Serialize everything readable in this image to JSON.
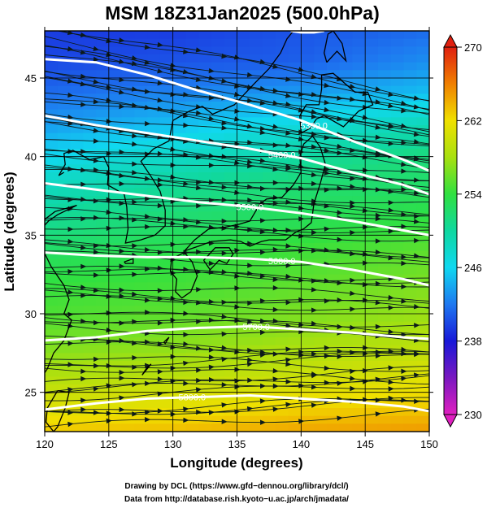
{
  "chart_data": {
    "type": "heatmap",
    "title": "MSM 18Z31Jan2025 (500.0hPa)",
    "xlabel": "Longitude (degrees)",
    "ylabel": "Latitude  (degrees)",
    "xlim": [
      120,
      150
    ],
    "ylim": [
      22.5,
      48
    ],
    "x_ticks": [
      120,
      125,
      130,
      135,
      140,
      145,
      150
    ],
    "y_ticks": [
      25,
      30,
      35,
      40,
      45
    ],
    "x_tick_labels": [
      "120",
      "125",
      "130",
      "135",
      "140",
      "145",
      "150"
    ],
    "y_tick_labels": [
      "25",
      "30",
      "35",
      "40",
      "45"
    ],
    "grid": true,
    "colorbar": {
      "min": 230,
      "max": 270,
      "ticks": [
        230,
        238,
        246,
        254,
        262,
        270
      ],
      "tick_labels": [
        "230",
        "238",
        "246",
        "254",
        "262",
        "270"
      ],
      "stops": [
        {
          "v": 230,
          "color": "#e020c0"
        },
        {
          "v": 234,
          "color": "#7a18c0"
        },
        {
          "v": 238,
          "color": "#1818d8"
        },
        {
          "v": 242,
          "color": "#1e78f0"
        },
        {
          "v": 246,
          "color": "#10d8f0"
        },
        {
          "v": 250,
          "color": "#10d8a0"
        },
        {
          "v": 254,
          "color": "#30e040"
        },
        {
          "v": 258,
          "color": "#a8e010"
        },
        {
          "v": 262,
          "color": "#f0e000"
        },
        {
          "v": 266,
          "color": "#f08000"
        },
        {
          "v": 270,
          "color": "#e02010"
        }
      ]
    },
    "temperature_field": {
      "lat": [
        48,
        46,
        44,
        42,
        40,
        38,
        36,
        34,
        32,
        30,
        28,
        26,
        24,
        22.5
      ],
      "lon": [
        120,
        130,
        140,
        150
      ],
      "values": [
        [
          239.5,
          239.5,
          240.5,
          241.5
        ],
        [
          240,
          240.5,
          241,
          243
        ],
        [
          241.5,
          242.5,
          243.5,
          245
        ],
        [
          243.5,
          245,
          247,
          249
        ],
        [
          246,
          248,
          250,
          251.5
        ],
        [
          248.5,
          250.5,
          252,
          252.5
        ],
        [
          250.5,
          252,
          253,
          254
        ],
        [
          252.5,
          253.5,
          254.5,
          255.5
        ],
        [
          254,
          254.5,
          255.5,
          256.5
        ],
        [
          255,
          255.5,
          256.5,
          257.5
        ],
        [
          256.5,
          257,
          258,
          259
        ],
        [
          258.5,
          259,
          260,
          261
        ],
        [
          261,
          261.5,
          262.5,
          263
        ],
        [
          263,
          263.5,
          264.5,
          265
        ]
      ]
    },
    "height_contours": [
      {
        "label": "5300.0",
        "points": [
          [
            120,
            46.2
          ],
          [
            124,
            46.0
          ],
          [
            128,
            45.2
          ],
          [
            132,
            44.2
          ],
          [
            136,
            43.3
          ],
          [
            140,
            42.3
          ],
          [
            144,
            41.0
          ],
          [
            148,
            39.8
          ],
          [
            150,
            39.1
          ]
        ]
      },
      {
        "label": "5400.0",
        "points": [
          [
            120,
            42.6
          ],
          [
            124,
            42.0
          ],
          [
            128,
            41.5
          ],
          [
            132,
            41.0
          ],
          [
            136,
            40.5
          ],
          [
            140,
            39.9
          ],
          [
            144,
            39.0
          ],
          [
            148,
            38.2
          ],
          [
            150,
            37.6
          ]
        ]
      },
      {
        "label": "5500.0",
        "points": [
          [
            120,
            38.3
          ],
          [
            124,
            37.9
          ],
          [
            128,
            37.5
          ],
          [
            132,
            37.1
          ],
          [
            136,
            36.8
          ],
          [
            140,
            36.4
          ],
          [
            144,
            35.9
          ],
          [
            148,
            35.3
          ],
          [
            150,
            35.0
          ]
        ]
      },
      {
        "label": "5600.0",
        "points": [
          [
            120,
            33.9
          ],
          [
            124,
            33.7
          ],
          [
            128,
            33.6
          ],
          [
            132,
            33.6
          ],
          [
            136,
            33.5
          ],
          [
            140,
            33.3
          ],
          [
            144,
            32.8
          ],
          [
            148,
            32.2
          ],
          [
            150,
            31.8
          ]
        ]
      },
      {
        "label": "5700.0",
        "points": [
          [
            120,
            28.3
          ],
          [
            124,
            28.5
          ],
          [
            128,
            28.9
          ],
          [
            132,
            29.1
          ],
          [
            136,
            29.2
          ],
          [
            140,
            29.0
          ],
          [
            144,
            28.8
          ],
          [
            148,
            28.5
          ],
          [
            150,
            28.4
          ]
        ]
      },
      {
        "label": "5800.0",
        "points": [
          [
            120,
            23.9
          ],
          [
            124,
            24.3
          ],
          [
            128,
            24.6
          ],
          [
            132,
            24.7
          ],
          [
            136,
            24.8
          ],
          [
            140,
            24.6
          ],
          [
            144,
            24.4
          ],
          [
            148,
            24.1
          ],
          [
            150,
            23.8
          ]
        ]
      },
      {
        "label": "",
        "points": [
          [
            139.2,
            48.0
          ],
          [
            140.0,
            47.9
          ],
          [
            141.0,
            47.9
          ],
          [
            141.8,
            48.0
          ]
        ]
      }
    ],
    "wind": {
      "description_visible": "streamlines with arrowheads, westerly flow"
    }
  },
  "credits": {
    "line1": "Drawing by DCL (https://www.gfd−dennou.org/library/dcl/)",
    "line2": "Data from http://database.rish.kyoto−u.ac.jp/arch/jmadata/"
  }
}
